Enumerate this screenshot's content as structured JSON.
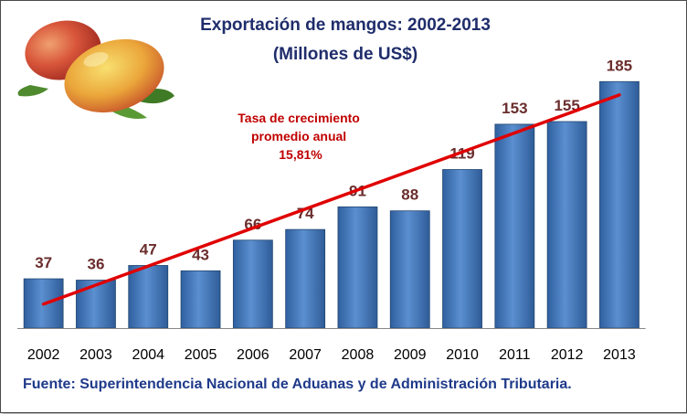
{
  "chart_data": {
    "type": "bar",
    "title": "Exportación de mangos: 2002-2013",
    "subtitle": "(Millones de US$)",
    "categories": [
      "2002",
      "2003",
      "2004",
      "2005",
      "2006",
      "2007",
      "2008",
      "2009",
      "2010",
      "2011",
      "2012",
      "2013"
    ],
    "values": [
      37,
      36,
      47,
      43,
      66,
      74,
      91,
      88,
      119,
      153,
      155,
      185
    ],
    "data_labels": [
      "37",
      "36",
      "47",
      "43",
      "66",
      "74",
      "91",
      "88",
      "119",
      "153",
      "155",
      "185"
    ],
    "ylim": [
      0,
      200
    ],
    "grid": false,
    "bar_color": "#4f81bd",
    "trendline": {
      "color": "#e00000",
      "start_value": 18,
      "end_value": 175
    },
    "annotation": [
      "Tasa de crecimiento",
      "promedio anual",
      "15,81%"
    ],
    "source": "Fuente: Superintendencia Nacional de Aduanas y de Administración Tributaria.",
    "image": "mango-fruit-image"
  }
}
